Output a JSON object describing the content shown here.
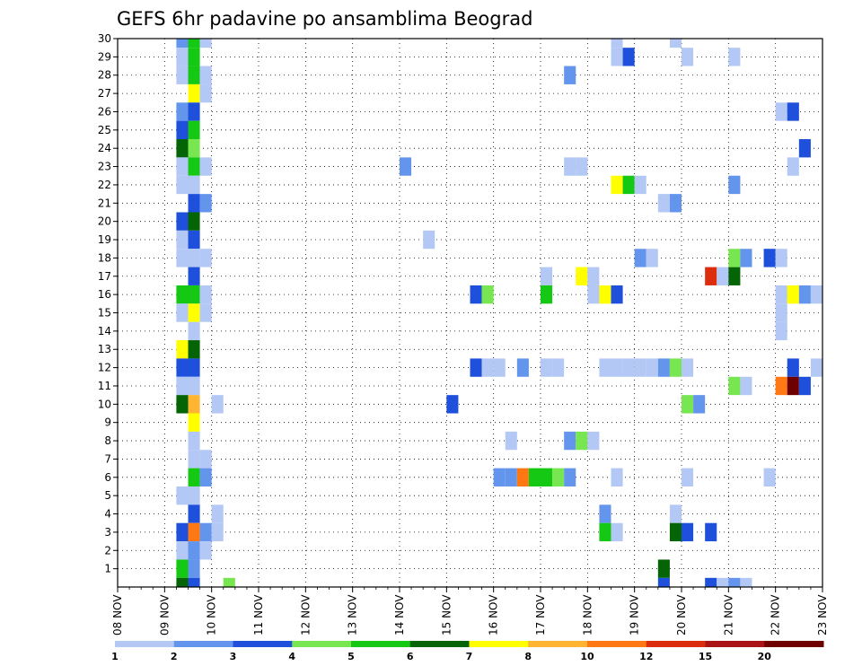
{
  "chart_data": {
    "type": "heatmap",
    "title": "GEFS 6hr padavine po ansamblima Beograd",
    "y_ticks": [
      "1",
      "2",
      "3",
      "4",
      "5",
      "6",
      "7",
      "8",
      "9",
      "10",
      "11",
      "12",
      "13",
      "14",
      "15",
      "16",
      "17",
      "18",
      "19",
      "20",
      "21",
      "22",
      "23",
      "24",
      "25",
      "26",
      "27",
      "28",
      "29",
      "30"
    ],
    "y_range": [
      0,
      30
    ],
    "x_range_days": [
      0,
      15
    ],
    "x_ticks": [
      "08 NOV",
      "09 NOV",
      "10 NOV",
      "11 NOV",
      "12 NOV",
      "13 NOV",
      "14 NOV",
      "15 NOV",
      "16 NOV",
      "17 NOV",
      "18 NOV",
      "19 NOV",
      "20 NOV",
      "21 NOV",
      "22 NOV",
      "23 NOV"
    ],
    "x_step_hours": 6,
    "grid": true,
    "colorbar": {
      "labels": [
        "1",
        "2",
        "3",
        "4",
        "5",
        "6",
        "7",
        "8",
        "10",
        "12",
        "15",
        "20"
      ],
      "colors": [
        "#b4c8f5",
        "#6495ed",
        "#1e50dc",
        "#78e650",
        "#14c814",
        "#056405",
        "#ffff00",
        "#ffb432",
        "#ff7814",
        "#dc2d0f",
        "#aa1414",
        "#6e0000"
      ]
    },
    "cells": [
      [
        1.25,
        30,
        2
      ],
      [
        1.5,
        30,
        5
      ],
      [
        1.75,
        30,
        1
      ],
      [
        1.25,
        29,
        1
      ],
      [
        1.5,
        29,
        5
      ],
      [
        1.25,
        28,
        1
      ],
      [
        1.5,
        28,
        5
      ],
      [
        1.75,
        28,
        1
      ],
      [
        1.5,
        27,
        7
      ],
      [
        1.75,
        27,
        1
      ],
      [
        1.25,
        26,
        2
      ],
      [
        1.5,
        26,
        3
      ],
      [
        1.25,
        25,
        3
      ],
      [
        1.5,
        25,
        5
      ],
      [
        1.25,
        24,
        6
      ],
      [
        1.5,
        24,
        4
      ],
      [
        1.25,
        23,
        1
      ],
      [
        1.5,
        23,
        5
      ],
      [
        1.75,
        23,
        1
      ],
      [
        1.25,
        22,
        1
      ],
      [
        1.5,
        22,
        1
      ],
      [
        1.5,
        21,
        3
      ],
      [
        1.75,
        21,
        2
      ],
      [
        1.25,
        20,
        3
      ],
      [
        1.5,
        20,
        6
      ],
      [
        1.25,
        19,
        1
      ],
      [
        1.5,
        19,
        3
      ],
      [
        1.25,
        18,
        1
      ],
      [
        1.5,
        18,
        1
      ],
      [
        1.75,
        18,
        1
      ],
      [
        1.5,
        17,
        3
      ],
      [
        1.25,
        16,
        5
      ],
      [
        1.5,
        16,
        5
      ],
      [
        1.75,
        16,
        1
      ],
      [
        1.25,
        15,
        1
      ],
      [
        1.5,
        15,
        7
      ],
      [
        1.75,
        15,
        1
      ],
      [
        1.5,
        14,
        1
      ],
      [
        1.25,
        13,
        7
      ],
      [
        1.5,
        13,
        6
      ],
      [
        1.25,
        12,
        3
      ],
      [
        1.5,
        12,
        3
      ],
      [
        1.25,
        11,
        1
      ],
      [
        1.5,
        11,
        1
      ],
      [
        1.25,
        10,
        6
      ],
      [
        1.5,
        10,
        8
      ],
      [
        2,
        10,
        1
      ],
      [
        1.5,
        9,
        7
      ],
      [
        1.5,
        8,
        1
      ],
      [
        1.5,
        7,
        1
      ],
      [
        1.75,
        7,
        1
      ],
      [
        1.5,
        6,
        5
      ],
      [
        1.75,
        6,
        2
      ],
      [
        1.25,
        5,
        1
      ],
      [
        1.5,
        5,
        1
      ],
      [
        1.5,
        4,
        3
      ],
      [
        2,
        4,
        1
      ],
      [
        1.25,
        3,
        3
      ],
      [
        1.5,
        3,
        9
      ],
      [
        1.75,
        3,
        2
      ],
      [
        2,
        3,
        1
      ],
      [
        1.25,
        2,
        1
      ],
      [
        1.5,
        2,
        2
      ],
      [
        1.75,
        2,
        1
      ],
      [
        1.25,
        1,
        5
      ],
      [
        1.5,
        1,
        2
      ],
      [
        1.25,
        0,
        6
      ],
      [
        1.5,
        0,
        3
      ],
      [
        2.25,
        0,
        4
      ],
      [
        6,
        23,
        2
      ],
      [
        6.5,
        19,
        1
      ],
      [
        7,
        10,
        3
      ],
      [
        7.5,
        16,
        3
      ],
      [
        7.75,
        16,
        4
      ],
      [
        7.5,
        12,
        3
      ],
      [
        7.75,
        12,
        1
      ],
      [
        8,
        12,
        1
      ],
      [
        8.5,
        12,
        2
      ],
      [
        9,
        12,
        1
      ],
      [
        9.25,
        12,
        1
      ],
      [
        8.25,
        8,
        1
      ],
      [
        8,
        6,
        2
      ],
      [
        8.25,
        6,
        2
      ],
      [
        8.5,
        6,
        9
      ],
      [
        8.75,
        6,
        5
      ],
      [
        9,
        6,
        5
      ],
      [
        9.25,
        6,
        4
      ],
      [
        9.5,
        6,
        2
      ],
      [
        9,
        17,
        1
      ],
      [
        9,
        16,
        5
      ],
      [
        9.5,
        28,
        2
      ],
      [
        9.5,
        23,
        1
      ],
      [
        9.75,
        23,
        1
      ],
      [
        9.5,
        8,
        2
      ],
      [
        9.75,
        8,
        4
      ],
      [
        10,
        8,
        1
      ],
      [
        9.75,
        17,
        7
      ],
      [
        10,
        17,
        1
      ],
      [
        10,
        16,
        1
      ],
      [
        10.25,
        16,
        7
      ],
      [
        10.5,
        16,
        3
      ],
      [
        10.25,
        12,
        1
      ],
      [
        10.5,
        12,
        1
      ],
      [
        10.75,
        12,
        1
      ],
      [
        11,
        12,
        1
      ],
      [
        11.25,
        12,
        1
      ],
      [
        11.5,
        12,
        2
      ],
      [
        11.75,
        12,
        4
      ],
      [
        12,
        12,
        1
      ],
      [
        10.5,
        30,
        1
      ],
      [
        10.5,
        29,
        1
      ],
      [
        10.75,
        29,
        3
      ],
      [
        10.5,
        22,
        7
      ],
      [
        10.75,
        22,
        5
      ],
      [
        11,
        22,
        1
      ],
      [
        10.25,
        4,
        2
      ],
      [
        10.25,
        3,
        5
      ],
      [
        10.5,
        3,
        1
      ],
      [
        10.5,
        6,
        1
      ],
      [
        11,
        18,
        2
      ],
      [
        11.25,
        18,
        1
      ],
      [
        11.5,
        21,
        1
      ],
      [
        11.75,
        21,
        2
      ],
      [
        11.75,
        30,
        1
      ],
      [
        11.5,
        1,
        6
      ],
      [
        11.5,
        0,
        3
      ],
      [
        11.75,
        4,
        1
      ],
      [
        11.75,
        3,
        6
      ],
      [
        12,
        3,
        3
      ],
      [
        12,
        29,
        1
      ],
      [
        12,
        10,
        4
      ],
      [
        12.25,
        10,
        2
      ],
      [
        12,
        6,
        1
      ],
      [
        12.5,
        17,
        10
      ],
      [
        12.75,
        17,
        1
      ],
      [
        13,
        17,
        6
      ],
      [
        12.5,
        3,
        3
      ],
      [
        12.5,
        0,
        3
      ],
      [
        12.75,
        0,
        1
      ],
      [
        13,
        0,
        2
      ],
      [
        13.25,
        0,
        1
      ],
      [
        13,
        18,
        4
      ],
      [
        13.25,
        18,
        2
      ],
      [
        13,
        11,
        4
      ],
      [
        13.25,
        11,
        1
      ],
      [
        13,
        29,
        1
      ],
      [
        13,
        22,
        2
      ],
      [
        13.75,
        18,
        3
      ],
      [
        14,
        18,
        1
      ],
      [
        13.75,
        6,
        1
      ],
      [
        14,
        16,
        1
      ],
      [
        14.25,
        16,
        7
      ],
      [
        14.5,
        16,
        2
      ],
      [
        14.75,
        16,
        1
      ],
      [
        14,
        15,
        1
      ],
      [
        14,
        14,
        1
      ],
      [
        14,
        26,
        1
      ],
      [
        14.25,
        26,
        3
      ],
      [
        14.25,
        23,
        1
      ],
      [
        14.5,
        24,
        3
      ],
      [
        14.25,
        12,
        3
      ],
      [
        14,
        11,
        9
      ],
      [
        14.25,
        11,
        12
      ],
      [
        14.5,
        11,
        3
      ],
      [
        14.75,
        12,
        1
      ]
    ]
  }
}
